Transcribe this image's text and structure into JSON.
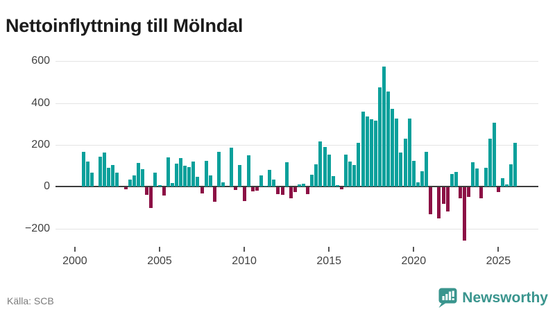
{
  "title": "Nettoinflyttning till Mölndal",
  "source": "Källa: SCB",
  "branding": {
    "logo_text": "Newsworthy",
    "logo_icon": "newsworthy-pin-barchart-icon"
  },
  "colors": {
    "positive_bar": "#0aa09b",
    "negative_bar": "#8c1045",
    "gridline": "#e4e4e4",
    "zero_line": "#3c3c3c",
    "axis_text": "#414141",
    "title_text": "#1c1c1c",
    "source_text": "#7c7c7c",
    "brand_teal": "#3a958e",
    "background": "#ffffff"
  },
  "chart_data": {
    "type": "bar",
    "title": "Nettoinflyttning till Mölndal",
    "xlabel": "",
    "ylabel": "",
    "x_ticks": [
      2000,
      2005,
      2010,
      2015,
      2020,
      2025
    ],
    "y_ticks": [
      600,
      400,
      200,
      0,
      -200
    ],
    "ylim": [
      -280,
      650
    ],
    "grid": true,
    "legend": "none",
    "frequency": "quarterly",
    "points": [
      [
        "2000Q3",
        168
      ],
      [
        "2000Q4",
        119
      ],
      [
        "2001Q1",
        68
      ],
      [
        "2001Q2",
        0
      ],
      [
        "2001Q3",
        143
      ],
      [
        "2001Q4",
        162
      ],
      [
        "2002Q1",
        90
      ],
      [
        "2002Q2",
        104
      ],
      [
        "2002Q3",
        66
      ],
      [
        "2002Q4",
        0
      ],
      [
        "2003Q1",
        -10
      ],
      [
        "2003Q2",
        33
      ],
      [
        "2003Q3",
        54
      ],
      [
        "2003Q4",
        115
      ],
      [
        "2004Q1",
        84
      ],
      [
        "2004Q2",
        -35
      ],
      [
        "2004Q3",
        -100
      ],
      [
        "2004Q4",
        67
      ],
      [
        "2005Q1",
        9
      ],
      [
        "2005Q2",
        -40
      ],
      [
        "2005Q3",
        141
      ],
      [
        "2005Q4",
        17
      ],
      [
        "2006Q1",
        110
      ],
      [
        "2006Q2",
        136
      ],
      [
        "2006Q3",
        101
      ],
      [
        "2006Q4",
        94
      ],
      [
        "2007Q1",
        121
      ],
      [
        "2007Q2",
        46
      ],
      [
        "2007Q3",
        -28
      ],
      [
        "2007Q4",
        123
      ],
      [
        "2008Q1",
        55
      ],
      [
        "2008Q2",
        -69
      ],
      [
        "2008Q3",
        167
      ],
      [
        "2008Q4",
        21
      ],
      [
        "2009Q1",
        0
      ],
      [
        "2009Q2",
        185
      ],
      [
        "2009Q3",
        -12
      ],
      [
        "2009Q4",
        102
      ],
      [
        "2010Q1",
        -66
      ],
      [
        "2010Q2",
        149
      ],
      [
        "2010Q3",
        -20
      ],
      [
        "2010Q4",
        -17
      ],
      [
        "2011Q1",
        53
      ],
      [
        "2011Q2",
        5
      ],
      [
        "2011Q3",
        79
      ],
      [
        "2011Q4",
        33
      ],
      [
        "2012Q1",
        -33
      ],
      [
        "2012Q2",
        -35
      ],
      [
        "2012Q3",
        118
      ],
      [
        "2012Q4",
        -53
      ],
      [
        "2013Q1",
        -22
      ],
      [
        "2013Q2",
        10
      ],
      [
        "2013Q3",
        13
      ],
      [
        "2013Q4",
        -33
      ],
      [
        "2014Q1",
        57
      ],
      [
        "2014Q2",
        107
      ],
      [
        "2014Q3",
        215
      ],
      [
        "2014Q4",
        191
      ],
      [
        "2015Q1",
        153
      ],
      [
        "2015Q2",
        52
      ],
      [
        "2015Q3",
        8
      ],
      [
        "2015Q4",
        -8
      ],
      [
        "2016Q1",
        153
      ],
      [
        "2016Q2",
        120
      ],
      [
        "2016Q3",
        102
      ],
      [
        "2016Q4",
        211
      ],
      [
        "2017Q1",
        358
      ],
      [
        "2017Q2",
        336
      ],
      [
        "2017Q3",
        322
      ],
      [
        "2017Q4",
        317
      ],
      [
        "2018Q1",
        474
      ],
      [
        "2018Q2",
        575
      ],
      [
        "2018Q3",
        453
      ],
      [
        "2018Q4",
        373
      ],
      [
        "2019Q1",
        324
      ],
      [
        "2019Q2",
        163
      ],
      [
        "2019Q3",
        230
      ],
      [
        "2019Q4",
        327
      ],
      [
        "2020Q1",
        122
      ],
      [
        "2020Q2",
        20
      ],
      [
        "2020Q3",
        74
      ],
      [
        "2020Q4",
        166
      ],
      [
        "2021Q1",
        -129
      ],
      [
        "2021Q2",
        0
      ],
      [
        "2021Q3",
        -147
      ],
      [
        "2021Q4",
        -78
      ],
      [
        "2022Q1",
        -114
      ],
      [
        "2022Q2",
        61
      ],
      [
        "2022Q3",
        69
      ],
      [
        "2022Q4",
        -52
      ],
      [
        "2023Q1",
        -255
      ],
      [
        "2023Q2",
        -44
      ],
      [
        "2023Q3",
        118
      ],
      [
        "2023Q4",
        88
      ],
      [
        "2024Q1",
        -52
      ],
      [
        "2024Q2",
        92
      ],
      [
        "2024Q3",
        230
      ],
      [
        "2024Q4",
        304
      ],
      [
        "2025Q1",
        -22
      ],
      [
        "2025Q2",
        42
      ],
      [
        "2025Q3",
        11
      ],
      [
        "2025Q4",
        108
      ],
      [
        "2026Q1",
        211
      ]
    ]
  }
}
